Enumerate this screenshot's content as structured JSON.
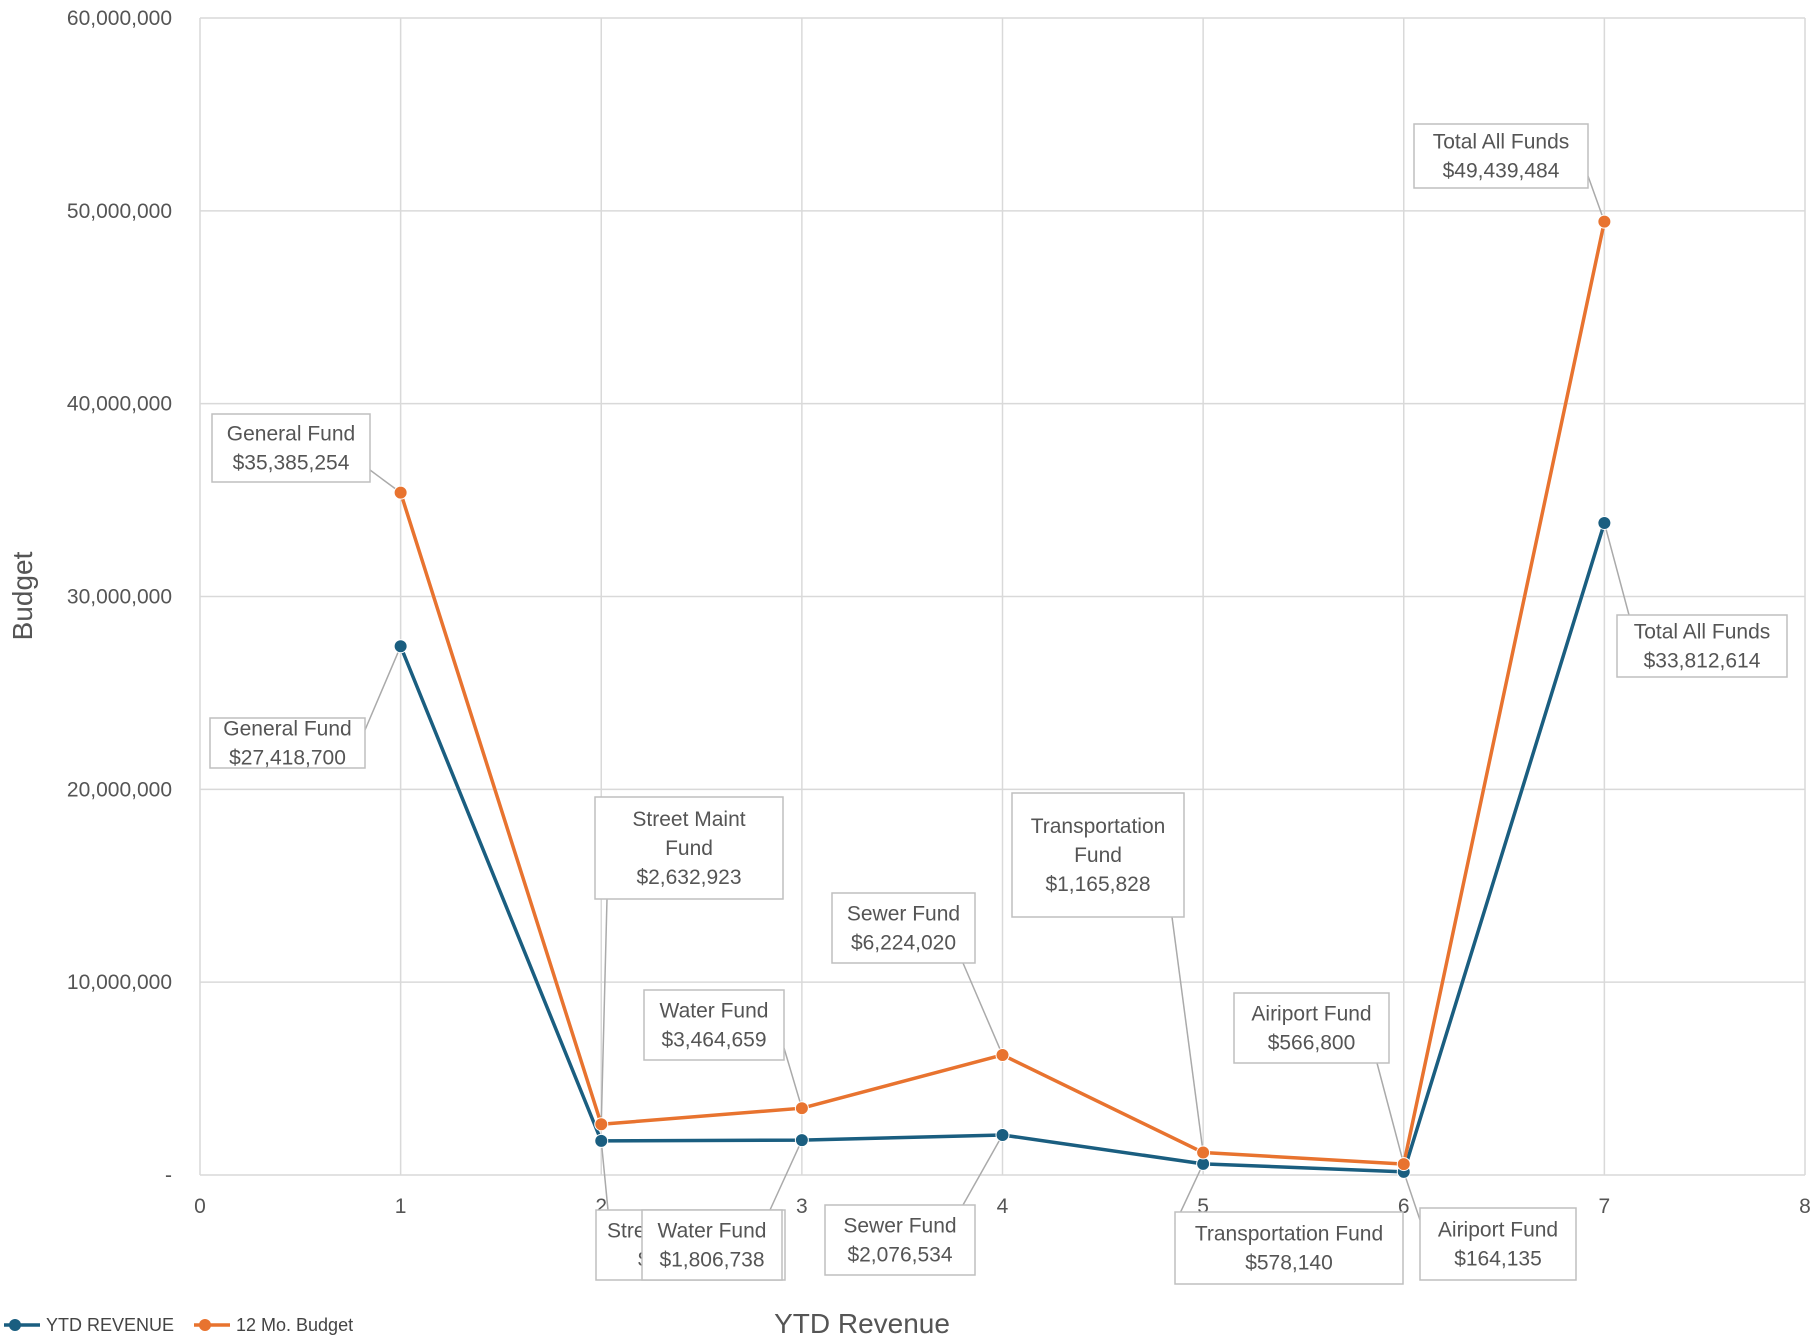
{
  "chart_data": {
    "type": "line",
    "xlabel": "YTD Revenue",
    "ylabel": "Budget",
    "x_ticks": [
      "0",
      "1",
      "2",
      "3",
      "4",
      "5",
      "6",
      "7",
      "8"
    ],
    "y_ticks": [
      "-",
      "10,000,000",
      "20,000,000",
      "30,000,000",
      "40,000,000",
      "50,000,000",
      "60,000,000"
    ],
    "xlim": [
      0,
      8
    ],
    "ylim": [
      0,
      60000000
    ],
    "grid": true,
    "legend_position": "bottom-left",
    "x": [
      1,
      2,
      3,
      4,
      5,
      6,
      7
    ],
    "series": [
      {
        "name": "YTD REVENUE",
        "color": "#1a5e80",
        "values": [
          27418700,
          1768367,
          1806738,
          2076534,
          578140,
          164135,
          33812614
        ],
        "labels": [
          [
            "General Fund",
            "$27,418,700"
          ],
          [
            "Street Maint Fund",
            "$1,768,367"
          ],
          [
            "Water Fund",
            "$1,806,738"
          ],
          [
            "Sewer Fund",
            "$2,076,534"
          ],
          [
            "Transportation Fund",
            "$578,140"
          ],
          [
            "Airiport Fund",
            "$164,135"
          ],
          [
            "Total All Funds",
            "$33,812,614"
          ]
        ]
      },
      {
        "name": "12 Mo. Budget",
        "color": "#e8732f",
        "values": [
          35385254,
          2632923,
          3464659,
          6224020,
          1165828,
          566800,
          49439484
        ],
        "labels": [
          [
            "General Fund",
            "$35,385,254"
          ],
          [
            "Street Maint",
            "Fund",
            "$2,632,923"
          ],
          [
            "Water Fund",
            "$3,464,659"
          ],
          [
            "Sewer Fund",
            "$6,224,020"
          ],
          [
            "Transportation",
            "Fund",
            "$1,165,828"
          ],
          [
            "Airiport Fund",
            "$566,800"
          ],
          [
            "Total All Funds",
            "$49,439,484"
          ]
        ]
      }
    ]
  }
}
